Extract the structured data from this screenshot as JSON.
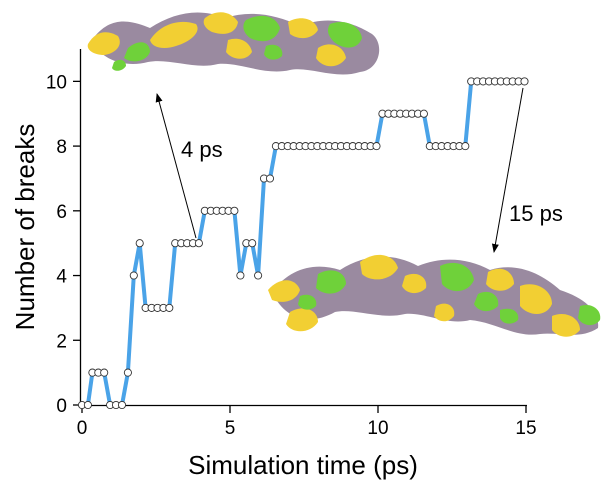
{
  "chart_data": {
    "type": "line",
    "xlabel": "Simulation time (ps)",
    "ylabel": "Number of breaks",
    "xlim": [
      0,
      15
    ],
    "ylim": [
      0,
      11
    ],
    "xticks": [
      0,
      5,
      10,
      15
    ],
    "yticks": [
      0,
      2,
      4,
      6,
      8,
      10
    ],
    "grid": false,
    "legend": "none",
    "line_color": "#4aa3e8",
    "marker": "open-circle",
    "series": [
      {
        "x": [
          0,
          0.2,
          0.35,
          0.55,
          0.75,
          0.95,
          1.15,
          1.35,
          1.55,
          1.75,
          1.95,
          2.15,
          2.35,
          2.55,
          2.75,
          2.95,
          3.15,
          3.35,
          3.55,
          3.75,
          3.95,
          4.15,
          4.35,
          4.55,
          4.75,
          4.95,
          5.15,
          5.35,
          5.55,
          5.75,
          5.95,
          6.15,
          6.35,
          6.55,
          6.75,
          6.95,
          7.15,
          7.35,
          7.55,
          7.75,
          7.95,
          8.15,
          8.35,
          8.55,
          8.75,
          8.95,
          9.15,
          9.35,
          9.55,
          9.75,
          9.95,
          10.15,
          10.35,
          10.55,
          10.75,
          10.95,
          11.15,
          11.35,
          11.55,
          11.75,
          11.95,
          12.15,
          12.35,
          12.55,
          12.75,
          12.95,
          13.15,
          13.35,
          13.55,
          13.75,
          13.95,
          14.15,
          14.35,
          14.55,
          14.75,
          14.95
        ],
        "y": [
          0,
          0,
          1,
          1,
          1,
          0,
          0,
          0,
          1,
          4,
          5,
          3,
          3,
          3,
          3,
          3,
          5,
          5,
          5,
          5,
          5,
          6,
          6,
          6,
          6,
          6,
          6,
          4,
          5,
          5,
          4,
          7,
          7,
          8,
          8,
          8,
          8,
          8,
          8,
          8,
          8,
          8,
          8,
          8,
          8,
          8,
          8,
          8,
          8,
          8,
          8,
          9,
          9,
          9,
          9,
          9,
          9,
          9,
          9,
          8,
          8,
          8,
          8,
          8,
          8,
          8,
          10,
          10,
          10,
          10,
          10,
          10,
          10,
          10,
          10,
          10
        ]
      }
    ],
    "annotations": [
      {
        "text": "4 ps",
        "points_to_x": 4
      },
      {
        "text": "15 ps",
        "points_to_x": 15
      }
    ]
  },
  "images": [
    {
      "name": "structure-snapshot-4ps",
      "colors": [
        "#f2cf33",
        "#6fd13a",
        "#9a8aa0"
      ]
    },
    {
      "name": "structure-snapshot-15ps",
      "colors": [
        "#f2cf33",
        "#6fd13a",
        "#9a8aa0"
      ]
    }
  ]
}
